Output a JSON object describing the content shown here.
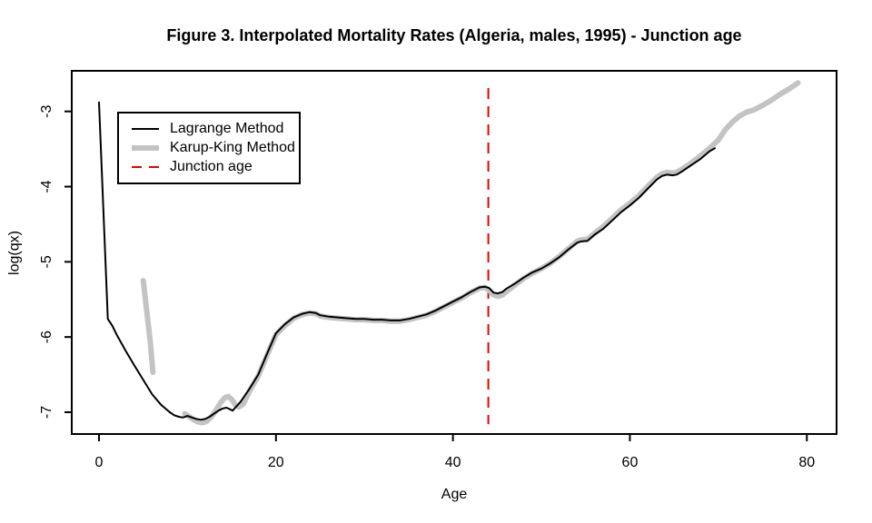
{
  "title": "Figure 3. Interpolated Mortality Rates (Algeria, males, 1995) - Junction age",
  "chart_data": {
    "type": "line",
    "title": "Figure 3. Interpolated Mortality Rates (Algeria, males, 1995) - Junction age",
    "xlabel": "Age",
    "ylabel": "log(qx)",
    "xlim": [
      -3.08,
      83.36
    ],
    "ylim": [
      -7.29,
      -2.46
    ],
    "xticks": [
      0,
      20,
      40,
      60,
      80
    ],
    "yticks": [
      -3,
      -4,
      -5,
      -6,
      -7
    ],
    "grid": false,
    "legend_position": "top-left",
    "background": "#ffffff",
    "junction": {
      "label": "Junction age",
      "age": 44,
      "color": "#e60000",
      "style": "dashed",
      "y_range": [
        -7.16,
        -2.69
      ]
    },
    "series": [
      {
        "name": "Lagrange Method",
        "color": "#000000",
        "stroke_width": 2,
        "style": "solid",
        "segments": [
          [
            [
              0,
              -2.88
            ],
            [
              1,
              -5.76
            ],
            [
              1.5,
              -5.85
            ],
            [
              2,
              -5.97
            ],
            [
              3,
              -6.18
            ],
            [
              4,
              -6.38
            ],
            [
              5,
              -6.57
            ],
            [
              6,
              -6.76
            ],
            [
              7,
              -6.9
            ],
            [
              8,
              -7.0
            ],
            [
              8.5,
              -7.04
            ],
            [
              9,
              -7.06
            ],
            [
              9.5,
              -7.07
            ],
            [
              10,
              -7.05
            ],
            [
              10.5,
              -7.07
            ],
            [
              11,
              -7.09
            ],
            [
              11.5,
              -7.1
            ],
            [
              12,
              -7.09
            ],
            [
              12.5,
              -7.06
            ],
            [
              13,
              -7.02
            ],
            [
              13.5,
              -6.98
            ],
            [
              14,
              -6.95
            ],
            [
              14.4,
              -6.94
            ],
            [
              14.8,
              -6.96
            ],
            [
              15.1,
              -6.98
            ],
            [
              15.4,
              -6.94
            ],
            [
              16,
              -6.86
            ],
            [
              17,
              -6.69
            ],
            [
              18,
              -6.5
            ],
            [
              19,
              -6.22
            ],
            [
              20,
              -5.95
            ],
            [
              21,
              -5.83
            ],
            [
              22,
              -5.74
            ],
            [
              23,
              -5.69
            ],
            [
              23.8,
              -5.67
            ],
            [
              24.5,
              -5.68
            ],
            [
              25,
              -5.71
            ],
            [
              26,
              -5.73
            ],
            [
              27,
              -5.74
            ],
            [
              28,
              -5.75
            ],
            [
              29,
              -5.76
            ],
            [
              30,
              -5.76
            ],
            [
              31,
              -5.77
            ],
            [
              32,
              -5.77
            ],
            [
              33,
              -5.78
            ],
            [
              34,
              -5.78
            ],
            [
              35,
              -5.76
            ],
            [
              36,
              -5.73
            ],
            [
              37,
              -5.7
            ],
            [
              38,
              -5.65
            ],
            [
              39,
              -5.59
            ],
            [
              40,
              -5.53
            ],
            [
              41,
              -5.47
            ],
            [
              42,
              -5.4
            ],
            [
              43,
              -5.34
            ],
            [
              43.6,
              -5.33
            ],
            [
              44.1,
              -5.35
            ],
            [
              44.6,
              -5.41
            ],
            [
              45.1,
              -5.42
            ],
            [
              45.6,
              -5.4
            ],
            [
              46,
              -5.36
            ],
            [
              47,
              -5.29
            ],
            [
              48,
              -5.21
            ],
            [
              49,
              -5.14
            ],
            [
              50,
              -5.09
            ],
            [
              51,
              -5.02
            ],
            [
              52,
              -4.94
            ],
            [
              53,
              -4.84
            ],
            [
              54,
              -4.75
            ],
            [
              54.4,
              -4.73
            ],
            [
              55.2,
              -4.72
            ],
            [
              56,
              -4.64
            ],
            [
              57,
              -4.56
            ],
            [
              58,
              -4.45
            ],
            [
              59,
              -4.34
            ],
            [
              60,
              -4.25
            ],
            [
              61,
              -4.15
            ],
            [
              62,
              -4.03
            ],
            [
              63,
              -3.91
            ],
            [
              63.6,
              -3.86
            ],
            [
              64.2,
              -3.84
            ],
            [
              64.8,
              -3.85
            ],
            [
              65.3,
              -3.84
            ],
            [
              66,
              -3.79
            ],
            [
              67,
              -3.71
            ],
            [
              68,
              -3.63
            ],
            [
              69,
              -3.53
            ],
            [
              69.6,
              -3.49
            ]
          ]
        ]
      },
      {
        "name": "Karup-King Method",
        "color": "#c3c3c3",
        "stroke_width": 6,
        "style": "solid",
        "segments": [
          [
            [
              5,
              -5.25
            ],
            [
              5.4,
              -5.66
            ],
            [
              5.8,
              -6.07
            ],
            [
              6.1,
              -6.47
            ]
          ],
          [
            [
              9.7,
              -7.02
            ],
            [
              10.2,
              -7.06
            ],
            [
              10.7,
              -7.1
            ],
            [
              11.2,
              -7.13
            ],
            [
              11.7,
              -7.14
            ],
            [
              12.2,
              -7.12
            ],
            [
              12.7,
              -7.06
            ],
            [
              13.2,
              -6.98
            ],
            [
              13.7,
              -6.88
            ],
            [
              14.2,
              -6.81
            ],
            [
              14.6,
              -6.79
            ],
            [
              15,
              -6.83
            ],
            [
              15.4,
              -6.9
            ],
            [
              15.8,
              -6.93
            ],
            [
              16.3,
              -6.89
            ],
            [
              17,
              -6.72
            ],
            [
              18,
              -6.52
            ],
            [
              19,
              -6.24
            ],
            [
              20,
              -5.97
            ],
            [
              21,
              -5.85
            ],
            [
              22,
              -5.75
            ],
            [
              23,
              -5.7
            ],
            [
              23.8,
              -5.68
            ],
            [
              24.5,
              -5.69
            ],
            [
              25,
              -5.72
            ],
            [
              26,
              -5.74
            ],
            [
              27,
              -5.75
            ],
            [
              28,
              -5.76
            ],
            [
              29,
              -5.77
            ],
            [
              30,
              -5.77
            ],
            [
              31,
              -5.78
            ],
            [
              32,
              -5.78
            ],
            [
              33,
              -5.79
            ],
            [
              34,
              -5.79
            ],
            [
              35,
              -5.77
            ],
            [
              36,
              -5.74
            ],
            [
              37,
              -5.71
            ],
            [
              38,
              -5.66
            ],
            [
              39,
              -5.6
            ],
            [
              40,
              -5.54
            ],
            [
              41,
              -5.48
            ],
            [
              42,
              -5.41
            ],
            [
              43,
              -5.35
            ],
            [
              43.6,
              -5.34
            ],
            [
              44.1,
              -5.38
            ],
            [
              44.6,
              -5.44
            ],
            [
              45.1,
              -5.46
            ],
            [
              45.6,
              -5.44
            ],
            [
              46,
              -5.4
            ],
            [
              47,
              -5.31
            ],
            [
              48,
              -5.22
            ],
            [
              49,
              -5.15
            ],
            [
              50,
              -5.09
            ],
            [
              51,
              -5.02
            ],
            [
              52,
              -4.93
            ],
            [
              53,
              -4.83
            ],
            [
              54,
              -4.73
            ],
            [
              54.4,
              -4.71
            ],
            [
              55.2,
              -4.7
            ],
            [
              56,
              -4.62
            ],
            [
              57,
              -4.53
            ],
            [
              58,
              -4.42
            ],
            [
              59,
              -4.31
            ],
            [
              60,
              -4.22
            ],
            [
              61,
              -4.12
            ],
            [
              62,
              -4.0
            ],
            [
              63,
              -3.88
            ],
            [
              63.6,
              -3.83
            ],
            [
              64.2,
              -3.81
            ],
            [
              64.8,
              -3.82
            ],
            [
              65.3,
              -3.81
            ],
            [
              66,
              -3.76
            ],
            [
              67,
              -3.68
            ],
            [
              68,
              -3.59
            ],
            [
              69,
              -3.49
            ],
            [
              70,
              -3.38
            ],
            [
              70.8,
              -3.24
            ],
            [
              71.6,
              -3.14
            ],
            [
              72.4,
              -3.06
            ],
            [
              73.2,
              -3.01
            ],
            [
              74,
              -2.98
            ],
            [
              75,
              -2.92
            ],
            [
              76,
              -2.85
            ],
            [
              77,
              -2.77
            ],
            [
              78,
              -2.7
            ],
            [
              79,
              -2.62
            ]
          ]
        ]
      }
    ]
  },
  "legend": {
    "items": [
      {
        "label": "Lagrange Method"
      },
      {
        "label": "Karup-King Method"
      },
      {
        "label": "Junction age"
      }
    ]
  }
}
